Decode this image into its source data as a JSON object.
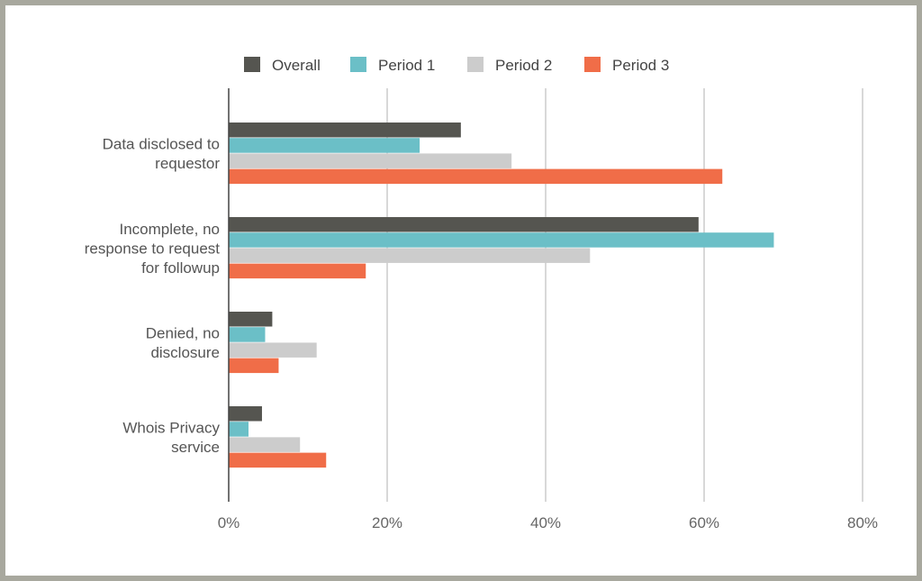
{
  "chart_data": {
    "type": "bar",
    "orientation": "horizontal",
    "categories": [
      [
        "Data disclosed to",
        "requestor"
      ],
      [
        "Incomplete, no",
        "response to request",
        "for followup"
      ],
      [
        "Denied, no",
        "disclosure"
      ],
      [
        "Whois Privacy",
        "service"
      ]
    ],
    "series": [
      {
        "name": "Overall",
        "color": "#555550",
        "values": [
          29.3,
          59.3,
          5.5,
          4.2
        ]
      },
      {
        "name": "Period 1",
        "color": "#6bbfc7",
        "values": [
          24.1,
          68.8,
          4.6,
          2.5
        ]
      },
      {
        "name": "Period 2",
        "color": "#cccccc",
        "values": [
          35.7,
          45.6,
          11.1,
          9.0
        ]
      },
      {
        "name": "Period 3",
        "color": "#f06d48",
        "values": [
          62.3,
          17.3,
          6.3,
          12.3
        ]
      }
    ],
    "xticks": [
      "0%",
      "20%",
      "40%",
      "60%",
      "80%"
    ],
    "xlim": [
      0,
      80
    ],
    "grid": true,
    "legend_position": "top"
  }
}
